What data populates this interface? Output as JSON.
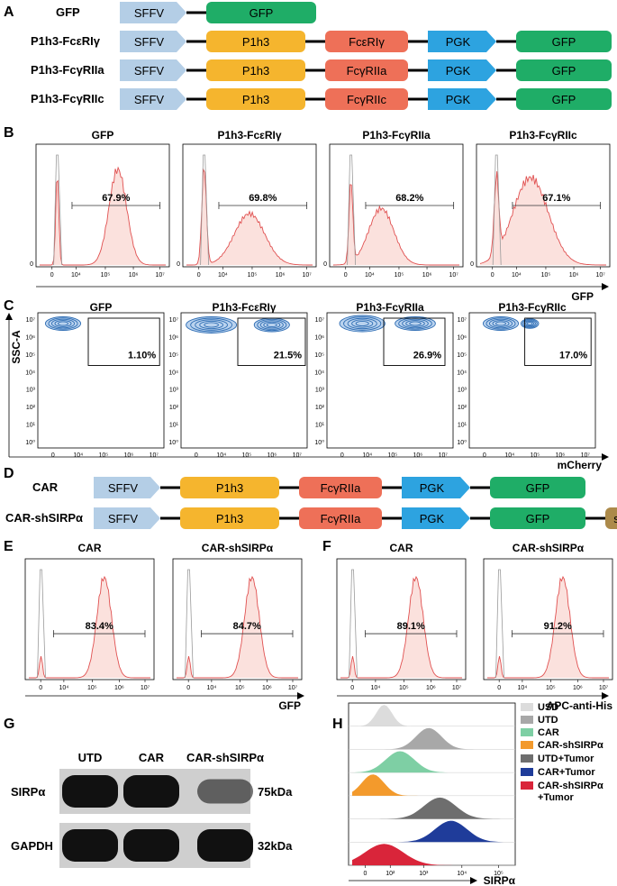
{
  "colors": {
    "sffv": "#b4cee6",
    "p1h3": "#f5b52e",
    "fc": "#ee7058",
    "pgk": "#2da3e0",
    "gfp": "#1fad67",
    "shsirpa": "#ac8a4a",
    "hist_line": "#e05050",
    "hist_fill": "#fbe1dd",
    "contour": "#2e6db4"
  },
  "panel_A": {
    "letter": "A",
    "constructs": [
      {
        "name": "GFP",
        "segments": [
          {
            "key": "sffv",
            "label": "SFFV",
            "shape": "arrow"
          },
          {
            "key": "gfp",
            "label": "GFP",
            "shape": "round"
          }
        ]
      },
      {
        "name": "P1h3-FcεRIγ",
        "segments": [
          {
            "key": "sffv",
            "label": "SFFV",
            "shape": "arrow"
          },
          {
            "key": "p1h3",
            "label": "P1h3",
            "shape": "round"
          },
          {
            "key": "fc",
            "label": "FcεRIγ",
            "shape": "round"
          },
          {
            "key": "pgk",
            "label": "PGK",
            "shape": "arrow"
          },
          {
            "key": "gfp",
            "label": "GFP",
            "shape": "round"
          }
        ]
      },
      {
        "name": "P1h3-FcγRIIa",
        "segments": [
          {
            "key": "sffv",
            "label": "SFFV",
            "shape": "arrow"
          },
          {
            "key": "p1h3",
            "label": "P1h3",
            "shape": "round"
          },
          {
            "key": "fc",
            "label": "FcγRIIa",
            "shape": "round"
          },
          {
            "key": "pgk",
            "label": "PGK",
            "shape": "arrow"
          },
          {
            "key": "gfp",
            "label": "GFP",
            "shape": "round"
          }
        ]
      },
      {
        "name": "P1h3-FcγRIIc",
        "segments": [
          {
            "key": "sffv",
            "label": "SFFV",
            "shape": "arrow"
          },
          {
            "key": "p1h3",
            "label": "P1h3",
            "shape": "round"
          },
          {
            "key": "fc",
            "label": "FcγRIIc",
            "shape": "round"
          },
          {
            "key": "pgk",
            "label": "PGK",
            "shape": "arrow"
          },
          {
            "key": "gfp",
            "label": "GFP",
            "shape": "round"
          }
        ]
      }
    ]
  },
  "panel_B": {
    "letter": "B",
    "xlabel": "GFP",
    "ticks": [
      "0",
      "10⁴",
      "10⁵",
      "10⁶",
      "10⁷"
    ],
    "zero_label": "0",
    "plots": [
      {
        "title": "GFP",
        "percent": "67.9%"
      },
      {
        "title": "P1h3-FcεRIγ",
        "percent": "69.8%"
      },
      {
        "title": "P1h3-FcγRIIa",
        "percent": "68.2%"
      },
      {
        "title": "P1h3-FcγRIIc",
        "percent": "67.1%"
      }
    ]
  },
  "panel_C": {
    "letter": "C",
    "xlabel": "mCherry",
    "ylabel": "SSC-A",
    "xticks": [
      "0",
      "10⁴",
      "10⁵",
      "10⁶",
      "10⁷"
    ],
    "yticks": [
      "10⁷",
      "10⁶",
      "10⁵",
      "10⁴",
      "10³",
      "10²",
      "10¹",
      "10⁰"
    ],
    "plots": [
      {
        "title": "GFP",
        "percent": "1.10%"
      },
      {
        "title": "P1h3-FcεRIγ",
        "percent": "21.5%"
      },
      {
        "title": "P1h3-FcγRIIa",
        "percent": "26.9%"
      },
      {
        "title": "P1h3-FcγRIIc",
        "percent": "17.0%"
      }
    ]
  },
  "panel_D": {
    "letter": "D",
    "constructs": [
      {
        "name": "CAR",
        "segments": [
          {
            "key": "sffv",
            "label": "SFFV",
            "shape": "arrow"
          },
          {
            "key": "p1h3",
            "label": "P1h3",
            "shape": "round"
          },
          {
            "key": "fc",
            "label": "FcγRIIa",
            "shape": "round"
          },
          {
            "key": "pgk",
            "label": "PGK",
            "shape": "arrow"
          },
          {
            "key": "gfp",
            "label": "GFP",
            "shape": "round"
          }
        ]
      },
      {
        "name": "CAR-shSIRPα",
        "segments": [
          {
            "key": "sffv",
            "label": "SFFV",
            "shape": "arrow"
          },
          {
            "key": "p1h3",
            "label": "P1h3",
            "shape": "round"
          },
          {
            "key": "fc",
            "label": "FcγRIIa",
            "shape": "round"
          },
          {
            "key": "pgk",
            "label": "PGK",
            "shape": "arrow"
          },
          {
            "key": "gfp",
            "label": "GFP",
            "shape": "round"
          },
          {
            "key": "shsirpa",
            "label": "shSIRPα",
            "shape": "round"
          }
        ]
      }
    ]
  },
  "panel_E": {
    "letter": "E",
    "xlabel": "GFP",
    "ticks": [
      "0",
      "10⁴",
      "10⁵",
      "10⁶",
      "10⁷"
    ],
    "plots": [
      {
        "title": "CAR",
        "percent": "83.4%"
      },
      {
        "title": "CAR-shSIRPα",
        "percent": "84.7%"
      }
    ]
  },
  "panel_F": {
    "letter": "F",
    "xlabel": "APC-anti-His",
    "ticks": [
      "0",
      "10⁴",
      "10⁵",
      "10⁶",
      "10⁷"
    ],
    "plots": [
      {
        "title": "CAR",
        "percent": "89.1%"
      },
      {
        "title": "CAR-shSIRPα",
        "percent": "91.2%"
      }
    ]
  },
  "panel_G": {
    "letter": "G",
    "lanes": [
      "UTD",
      "CAR",
      "CAR-shSIRPα"
    ],
    "rows": [
      {
        "protein": "SIRPα",
        "size": "75kDa",
        "band_intensity": [
          1.0,
          1.0,
          0.45
        ]
      },
      {
        "protein": "GAPDH",
        "size": "32kDa",
        "band_intensity": [
          1.0,
          1.0,
          1.0
        ]
      }
    ]
  },
  "panel_H": {
    "letter": "H",
    "xlabel": "SIRPα",
    "ticks": [
      "0",
      "10²",
      "10³",
      "10⁴",
      "10⁵"
    ],
    "legend": [
      {
        "label": "USD",
        "color": "#dcdcdc"
      },
      {
        "label": "UTD",
        "color": "#a8a8a8"
      },
      {
        "label": "CAR",
        "color": "#7ecfa4"
      },
      {
        "label": "CAR-shSIRPα",
        "color": "#f39a2c"
      },
      {
        "label": "UTD+Tumor",
        "color": "#6e6e6e"
      },
      {
        "label": "CAR+Tumor",
        "color": "#1f3c9a"
      },
      {
        "label": "CAR-shSIRPα",
        "label2": "+Tumor",
        "color": "#d9253a"
      }
    ]
  }
}
